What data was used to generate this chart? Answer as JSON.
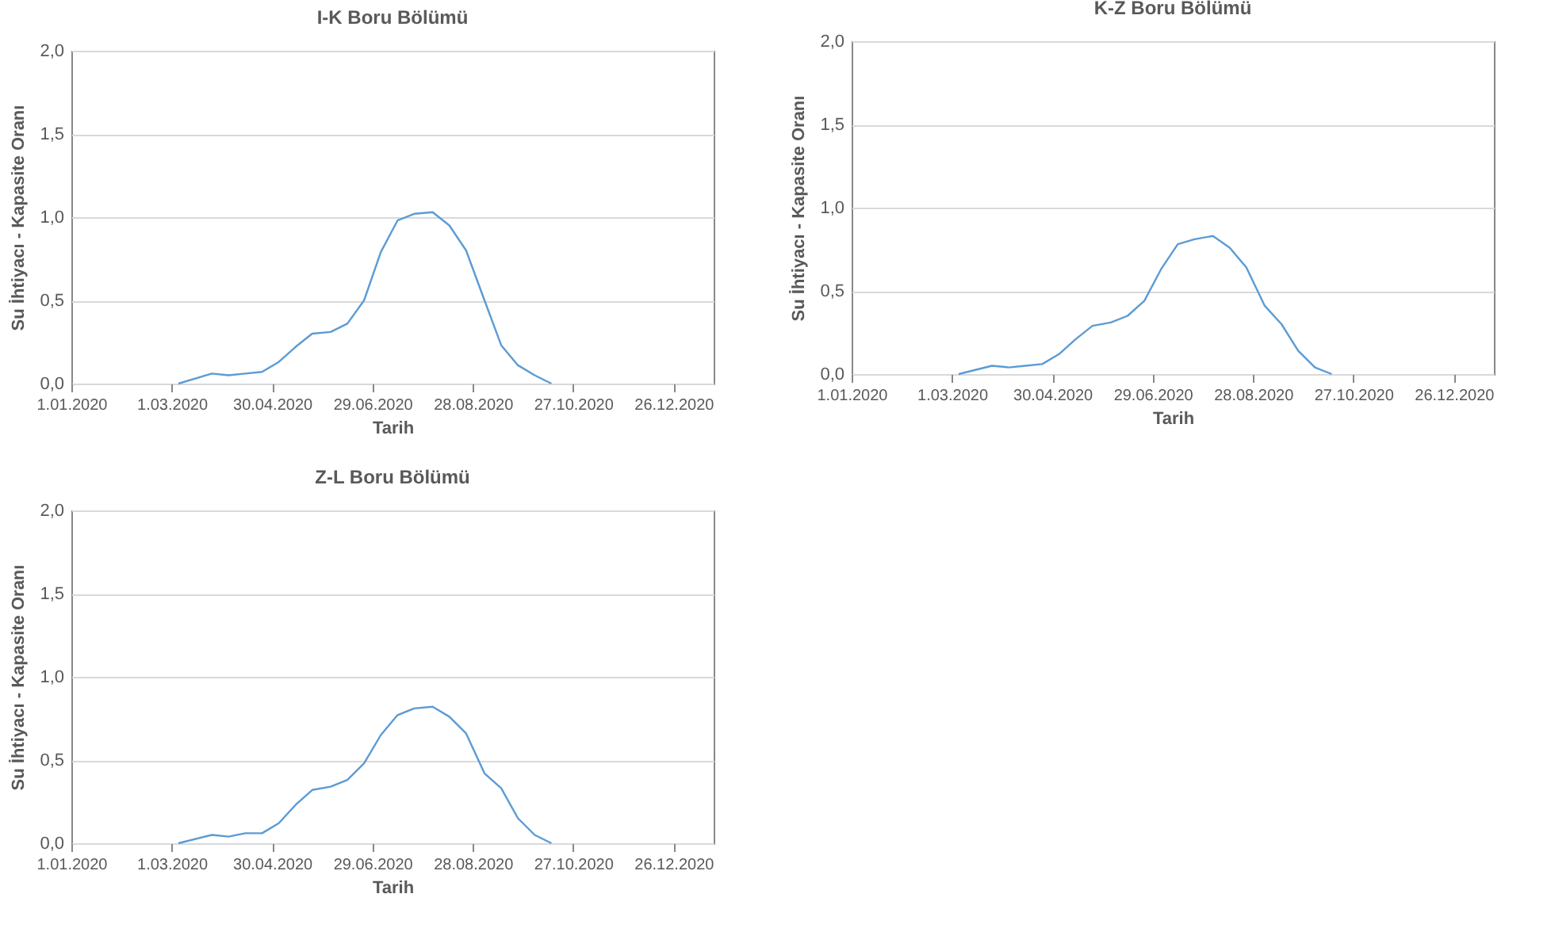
{
  "chart_data": [
    {
      "type": "line",
      "title": "I-K Boru Bölümü",
      "xlabel": "Tarih",
      "ylabel": "Su İhtiyacı - Kapasite Oranı",
      "x": [
        "2020-03-05",
        "2020-03-25",
        "2020-04-04",
        "2020-04-14",
        "2020-04-24",
        "2020-05-04",
        "2020-05-14",
        "2020-05-24",
        "2020-06-04",
        "2020-06-14",
        "2020-06-24",
        "2020-07-04",
        "2020-07-14",
        "2020-07-24",
        "2020-08-04",
        "2020-08-14",
        "2020-08-24",
        "2020-09-04",
        "2020-09-14",
        "2020-09-24",
        "2020-10-04",
        "2020-10-14"
      ],
      "series": [
        {
          "color": "#5b9bd5",
          "values": [
            0,
            0.06,
            0.05,
            0.06,
            0.07,
            0.13,
            0.22,
            0.3,
            0.31,
            0.36,
            0.5,
            0.79,
            0.98,
            1.02,
            1.03,
            0.95,
            0.8,
            0.5,
            0.23,
            0.11,
            0.05,
            0
          ]
        }
      ],
      "xlim": [
        "2020-01-01",
        "2021-01-19"
      ],
      "xticks": [
        {
          "value": "2020-01-01",
          "label": "1.01.2020"
        },
        {
          "value": "2020-03-01",
          "label": "1.03.2020"
        },
        {
          "value": "2020-04-30",
          "label": "30.04.2020"
        },
        {
          "value": "2020-06-29",
          "label": "29.06.2020"
        },
        {
          "value": "2020-08-28",
          "label": "28.08.2020"
        },
        {
          "value": "2020-10-27",
          "label": "27.10.2020"
        },
        {
          "value": "2020-12-26",
          "label": "26.12.2020"
        }
      ],
      "ylim": [
        0,
        2
      ],
      "yticks": [
        {
          "value": 0,
          "label": "0,0"
        },
        {
          "value": 0.5,
          "label": "0,5"
        },
        {
          "value": 1,
          "label": "1,0"
        },
        {
          "value": 1.5,
          "label": "1,5"
        },
        {
          "value": 2,
          "label": "2,0"
        }
      ],
      "grid": "y",
      "marker": "none",
      "line_style": "solid"
    },
    {
      "type": "line",
      "title": "K-Z Boru Bölümü",
      "xlabel": "Tarih",
      "ylabel": "Su İhtiyacı - Kapasite Oranı",
      "x": [
        "2020-03-05",
        "2020-03-25",
        "2020-04-04",
        "2020-04-14",
        "2020-04-24",
        "2020-05-04",
        "2020-05-14",
        "2020-05-24",
        "2020-06-04",
        "2020-06-14",
        "2020-06-24",
        "2020-07-04",
        "2020-07-14",
        "2020-07-24",
        "2020-08-04",
        "2020-08-14",
        "2020-08-24",
        "2020-09-04",
        "2020-09-14",
        "2020-09-24",
        "2020-10-04",
        "2020-10-14"
      ],
      "series": [
        {
          "color": "#5b9bd5",
          "values": [
            0,
            0.05,
            0.04,
            0.05,
            0.06,
            0.12,
            0.21,
            0.29,
            0.31,
            0.35,
            0.44,
            0.63,
            0.78,
            0.81,
            0.83,
            0.76,
            0.64,
            0.41,
            0.3,
            0.14,
            0.04,
            0
          ]
        }
      ],
      "xlim": [
        "2020-01-01",
        "2021-01-19"
      ],
      "xticks": [
        {
          "value": "2020-01-01",
          "label": "1.01.2020"
        },
        {
          "value": "2020-03-01",
          "label": "1.03.2020"
        },
        {
          "value": "2020-04-30",
          "label": "30.04.2020"
        },
        {
          "value": "2020-06-29",
          "label": "29.06.2020"
        },
        {
          "value": "2020-08-28",
          "label": "28.08.2020"
        },
        {
          "value": "2020-10-27",
          "label": "27.10.2020"
        },
        {
          "value": "2020-12-26",
          "label": "26.12.2020"
        }
      ],
      "ylim": [
        0,
        2
      ],
      "yticks": [
        {
          "value": 0,
          "label": "0,0"
        },
        {
          "value": 0.5,
          "label": "0,5"
        },
        {
          "value": 1,
          "label": "1,0"
        },
        {
          "value": 1.5,
          "label": "1,5"
        },
        {
          "value": 2,
          "label": "2,0"
        }
      ],
      "grid": "y",
      "marker": "none",
      "line_style": "solid"
    },
    {
      "type": "line",
      "title": "Z-L Boru Bölümü",
      "xlabel": "Tarih",
      "ylabel": "Su İhtiyacı - Kapasite Oranı",
      "x": [
        "2020-03-05",
        "2020-03-25",
        "2020-04-04",
        "2020-04-14",
        "2020-04-24",
        "2020-05-04",
        "2020-05-14",
        "2020-05-24",
        "2020-06-04",
        "2020-06-14",
        "2020-06-24",
        "2020-07-04",
        "2020-07-14",
        "2020-07-24",
        "2020-08-04",
        "2020-08-14",
        "2020-08-24",
        "2020-09-04",
        "2020-09-14",
        "2020-09-24",
        "2020-10-04",
        "2020-10-14"
      ],
      "series": [
        {
          "color": "#5b9bd5",
          "values": [
            0,
            0.05,
            0.04,
            0.06,
            0.06,
            0.12,
            0.23,
            0.32,
            0.34,
            0.38,
            0.48,
            0.65,
            0.77,
            0.81,
            0.82,
            0.76,
            0.66,
            0.42,
            0.33,
            0.15,
            0.05,
            0
          ]
        }
      ],
      "xlim": [
        "2020-01-01",
        "2021-01-19"
      ],
      "xticks": [
        {
          "value": "2020-01-01",
          "label": "1.01.2020"
        },
        {
          "value": "2020-03-01",
          "label": "1.03.2020"
        },
        {
          "value": "2020-04-30",
          "label": "30.04.2020"
        },
        {
          "value": "2020-06-29",
          "label": "29.06.2020"
        },
        {
          "value": "2020-08-28",
          "label": "28.08.2020"
        },
        {
          "value": "2020-10-27",
          "label": "27.10.2020"
        },
        {
          "value": "2020-12-26",
          "label": "26.12.2020"
        }
      ],
      "ylim": [
        0,
        2
      ],
      "yticks": [
        {
          "value": 0,
          "label": "0,0"
        },
        {
          "value": 0.5,
          "label": "0,5"
        },
        {
          "value": 1,
          "label": "1,0"
        },
        {
          "value": 1.5,
          "label": "1,5"
        },
        {
          "value": 2,
          "label": "2,0"
        }
      ],
      "grid": "y",
      "marker": "none",
      "line_style": "solid"
    }
  ]
}
